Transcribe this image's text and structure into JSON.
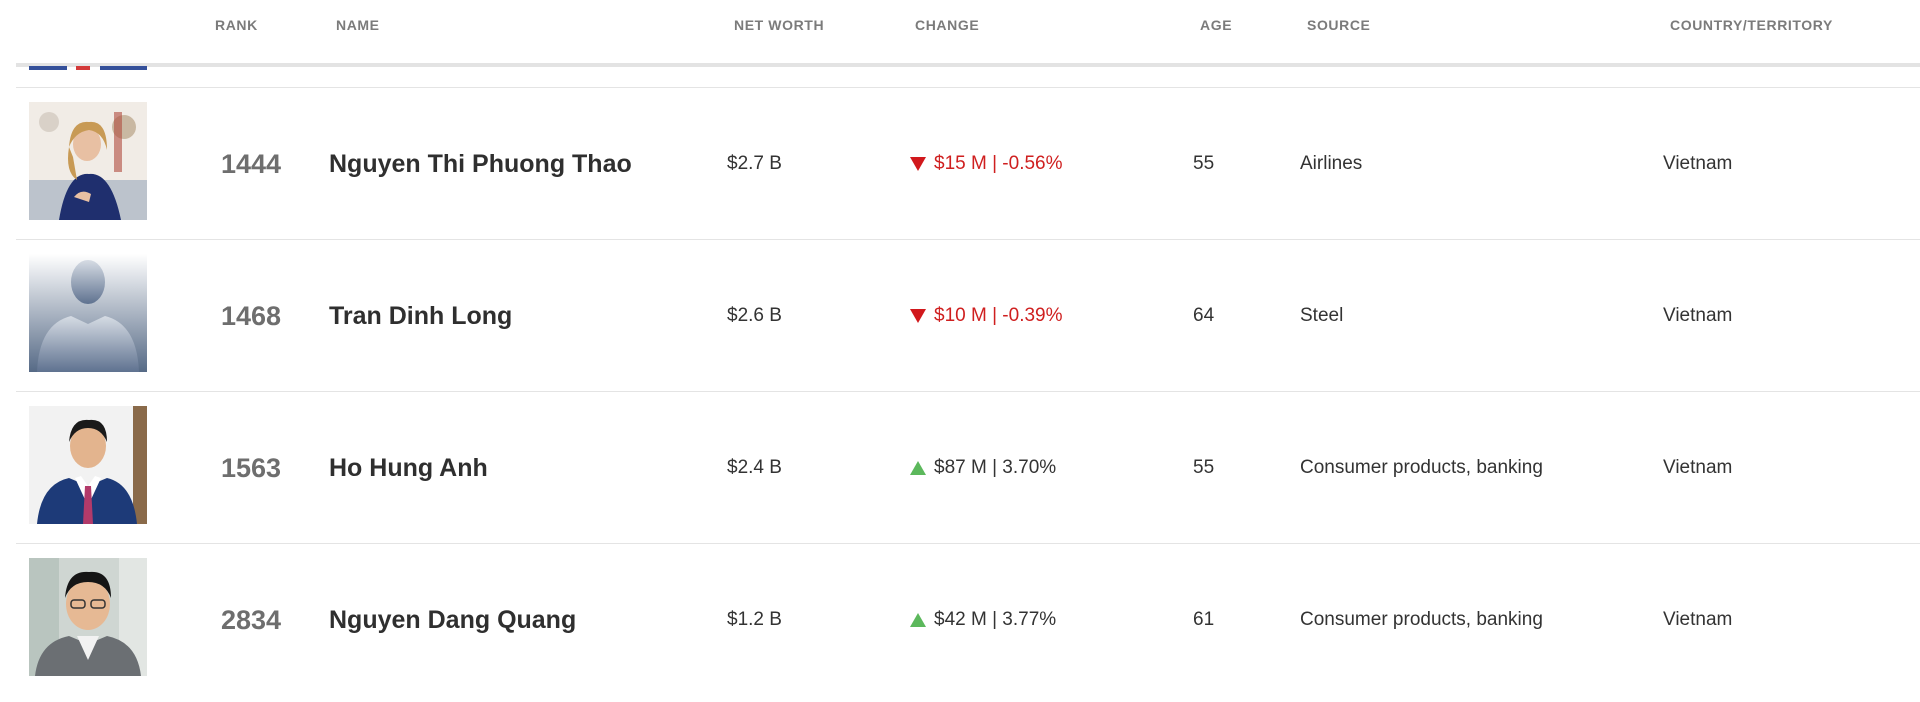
{
  "columns": {
    "rank": "RANK",
    "name": "NAME",
    "net_worth": "NET WORTH",
    "change": "CHANGE",
    "age": "AGE",
    "source": "SOURCE",
    "country": "COUNTRY/TERRITORY"
  },
  "colors": {
    "down": "#cf1f1f",
    "up_arrow": "#5cb85c",
    "header_text": "#7b7b7b",
    "rank_text": "#6e6e6e"
  },
  "rows": [
    {
      "rank": "1444",
      "name": "Nguyen Thi Phuong Thao",
      "net_worth": "$2.7 B",
      "change": "$15 M | -0.56%",
      "direction": "down",
      "age": "55",
      "source": "Airlines",
      "country": "Vietnam",
      "photo": "portrait-photo"
    },
    {
      "rank": "1468",
      "name": "Tran Dinh Long",
      "net_worth": "$2.6 B",
      "change": "$10 M | -0.39%",
      "direction": "down",
      "age": "64",
      "source": "Steel",
      "country": "Vietnam",
      "photo": "silhouette-placeholder"
    },
    {
      "rank": "1563",
      "name": "Ho Hung Anh",
      "net_worth": "$2.4 B",
      "change": "$87 M | 3.70%",
      "direction": "up",
      "age": "55",
      "source": "Consumer products, banking",
      "country": "Vietnam",
      "photo": "portrait-photo"
    },
    {
      "rank": "2834",
      "name": "Nguyen Dang Quang",
      "net_worth": "$1.2 B",
      "change": "$42 M | 3.77%",
      "direction": "up",
      "age": "61",
      "source": "Consumer products, banking",
      "country": "Vietnam",
      "photo": "portrait-photo"
    }
  ]
}
